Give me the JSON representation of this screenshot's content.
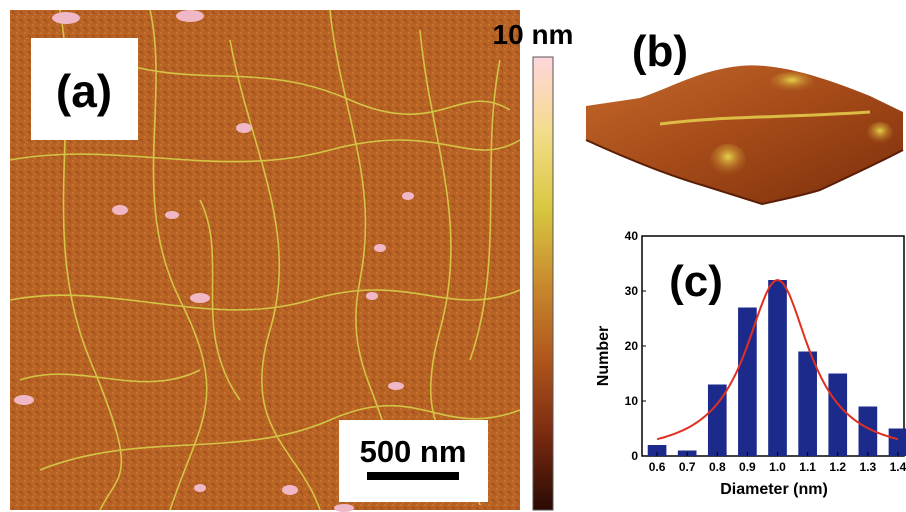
{
  "panel_a": {
    "label": "(a)",
    "scalebar_text": "500 nm"
  },
  "colorbar": {
    "max_label": "10 nm",
    "colors": [
      "#ffd6dc",
      "#f3dc8a",
      "#d8c840",
      "#c98a2e",
      "#b0561c",
      "#7a2a10",
      "#2a0a04"
    ]
  },
  "panel_b": {
    "label": "(b)"
  },
  "panel_c": {
    "label": "(c)",
    "bar_color": "#1c2a8c",
    "fit_color": "#e03020"
  },
  "chart_data": {
    "type": "bar",
    "title": "",
    "xlabel": "Diameter (nm)",
    "ylabel": "Number",
    "categories": [
      "0.6",
      "0.7",
      "0.8",
      "0.9",
      "1.0",
      "1.1",
      "1.2",
      "1.3",
      "1.4"
    ],
    "values": [
      2,
      1,
      13,
      27,
      32,
      19,
      15,
      9,
      5
    ],
    "ylim": [
      0,
      40
    ],
    "yticks": [
      0,
      10,
      20,
      30,
      40
    ],
    "fit_curve": "lorentzian",
    "fit_center": 1.0,
    "fit_peak": 32,
    "fit_hwhm": 0.13
  }
}
